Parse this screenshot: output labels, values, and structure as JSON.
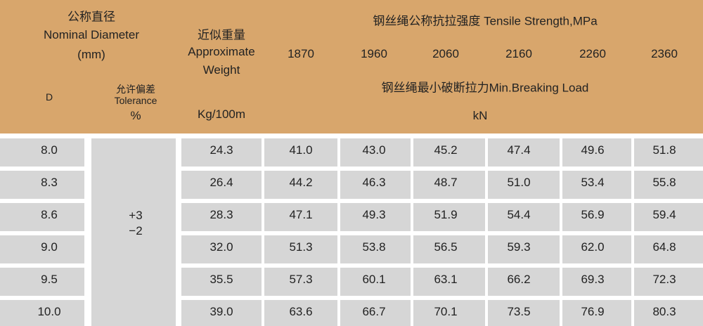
{
  "header": {
    "diameter_cn": "公称直径",
    "diameter_en": "Nominal Diameter",
    "diameter_unit": "(mm)",
    "d": "D",
    "tolerance_cn": "允许偏差",
    "tolerance_en": "Tolerance",
    "tolerance_unit": "%",
    "weight_cn": "近似重量",
    "weight_en": [
      "Approximate",
      "Weight"
    ],
    "weight_unit": "Kg/100m",
    "strength_title": "钢丝绳公称抗拉强度 Tensile Strength,MPa",
    "grades": [
      "1870",
      "1960",
      "2060",
      "2160",
      "2260",
      "2360"
    ],
    "load_title": "钢丝绳最小破断拉力Min.Breaking Load",
    "load_unit": "kN"
  },
  "table": {
    "tolerance": [
      "+3",
      "−2"
    ],
    "rows": [
      [
        "8.0",
        "24.3",
        "41.0",
        "43.0",
        "45.2",
        "47.4",
        "49.6",
        "51.8"
      ],
      [
        "8.3",
        "26.4",
        "44.2",
        "46.3",
        "48.7",
        "51.0",
        "53.4",
        "55.8"
      ],
      [
        "8.6",
        "28.3",
        "47.1",
        "49.3",
        "51.9",
        "54.4",
        "56.9",
        "59.4"
      ],
      [
        "9.0",
        "32.0",
        "51.3",
        "53.8",
        "56.5",
        "59.3",
        "62.0",
        "64.8"
      ],
      [
        "9.5",
        "35.5",
        "57.3",
        "60.1",
        "63.1",
        "66.2",
        "69.3",
        "72.3"
      ],
      [
        "10.0",
        "39.0",
        "63.6",
        "66.7",
        "70.1",
        "73.5",
        "76.9",
        "80.3"
      ]
    ]
  }
}
